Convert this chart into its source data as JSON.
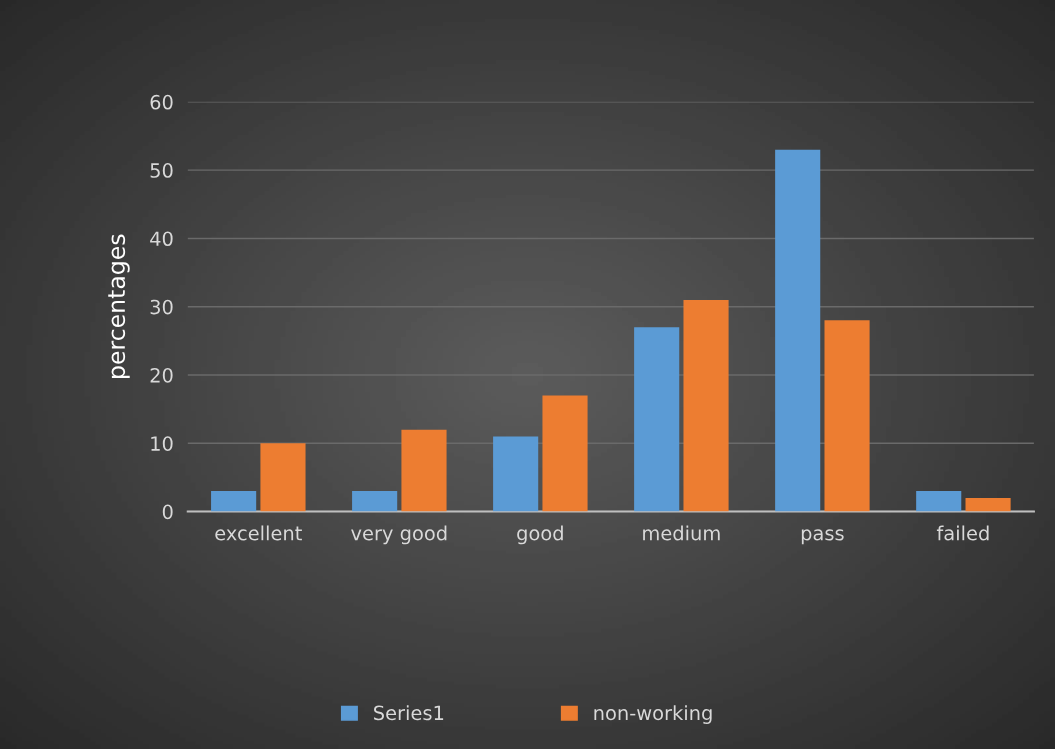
{
  "chart_data": {
    "type": "bar",
    "ylabel": "percentages",
    "categories": [
      "excellent",
      "very good",
      "good",
      "medium",
      "pass",
      "failed"
    ],
    "series": [
      {
        "name": "Series1",
        "color": "#5b9bd5",
        "values": [
          3,
          3,
          11,
          27,
          53,
          3
        ]
      },
      {
        "name": "non-working",
        "color": "#ed7d31",
        "values": [
          10,
          12,
          17,
          31,
          28,
          2
        ]
      }
    ],
    "ylim": [
      0,
      60
    ],
    "yticks": [
      0,
      10,
      20,
      30,
      40,
      50,
      60
    ],
    "grid": "y",
    "legend": "bottom"
  }
}
